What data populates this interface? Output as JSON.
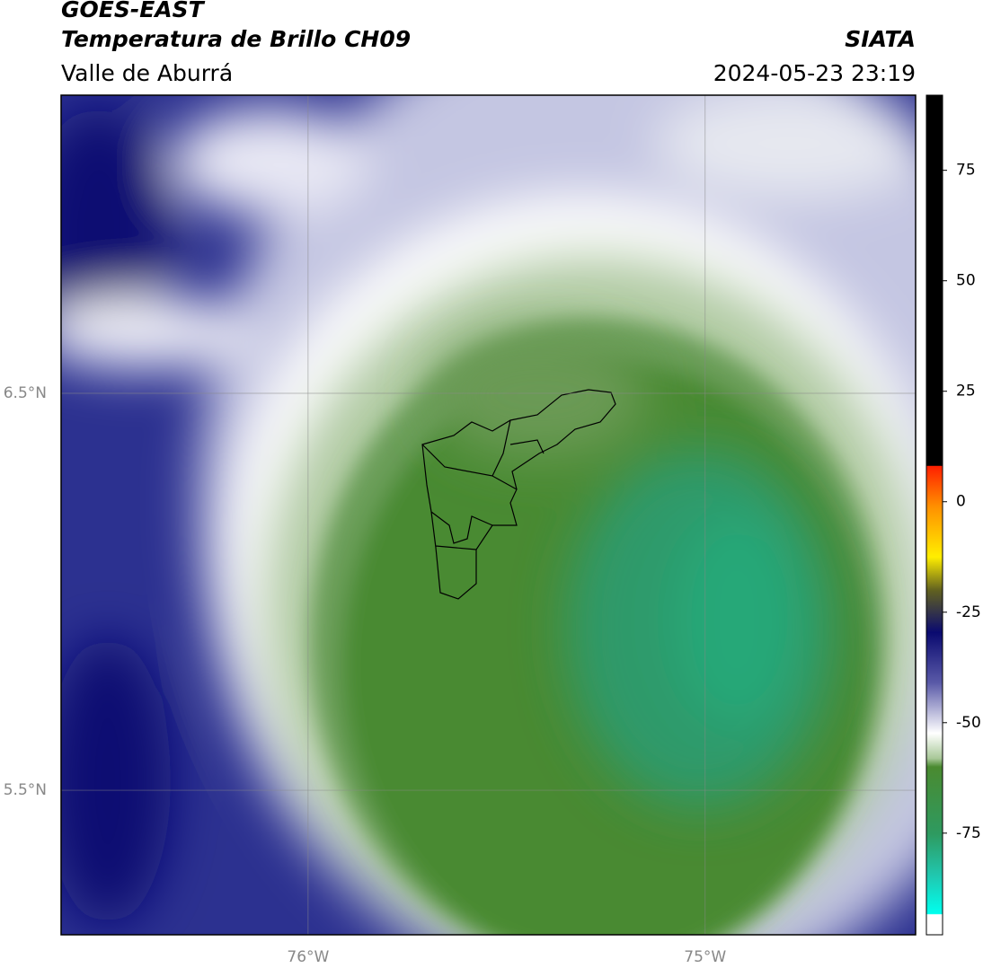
{
  "header": {
    "title": "GOES-EAST",
    "subtitle": "Temperatura de Brillo CH09",
    "region": "Valle de Aburrá",
    "source": "SIATA",
    "datetime": "2024-05-23 23:19"
  },
  "map": {
    "xlim": [
      -76.622,
      -74.47
    ],
    "ylim": [
      5.136,
      7.251
    ],
    "xticks": [
      {
        "value": -76,
        "label": "76°W"
      },
      {
        "value": -75,
        "label": "75°W"
      }
    ],
    "yticks": [
      {
        "value": 6.5,
        "label": "6.5°N"
      },
      {
        "value": 5.5,
        "label": "5.5°N"
      }
    ],
    "grid": true
  },
  "colorbar": {
    "lim": [
      -98,
      92
    ],
    "ticks": [
      75,
      50,
      25,
      0,
      -25,
      -50,
      -75
    ]
  }
}
